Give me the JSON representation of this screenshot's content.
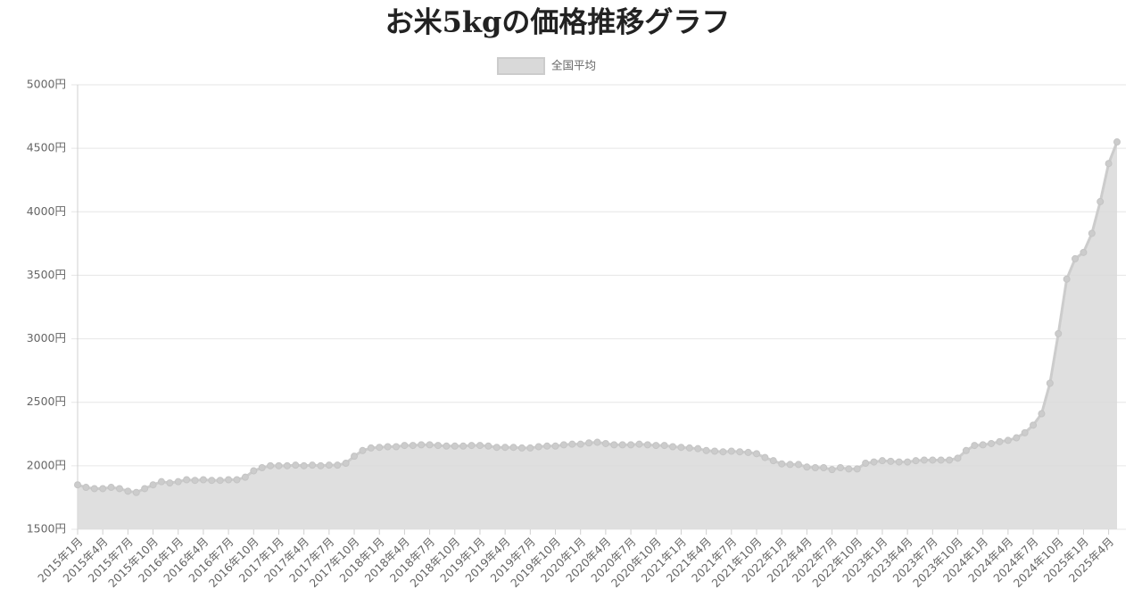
{
  "chart_data": {
    "type": "area",
    "title": "お米5kgの価格推移グラフ",
    "categories": [
      "2015年1月",
      null,
      null,
      "2015年4月",
      null,
      null,
      "2015年7月",
      null,
      null,
      "2015年10月",
      null,
      null,
      "2016年1月",
      null,
      null,
      "2016年4月",
      null,
      null,
      "2016年7月",
      null,
      null,
      "2016年10月",
      null,
      null,
      "2017年1月",
      null,
      null,
      "2017年4月",
      null,
      null,
      "2017年7月",
      null,
      null,
      "2017年10月",
      null,
      null,
      "2018年1月",
      null,
      null,
      "2018年4月",
      null,
      null,
      "2018年7月",
      null,
      null,
      "2018年10月",
      null,
      null,
      "2019年1月",
      null,
      null,
      "2019年4月",
      null,
      null,
      "2019年7月",
      null,
      null,
      "2019年10月",
      null,
      null,
      "2020年1月",
      null,
      null,
      "2020年4月",
      null,
      null,
      "2020年7月",
      null,
      null,
      "2020年10月",
      null,
      null,
      "2021年1月",
      null,
      null,
      "2021年4月",
      null,
      null,
      "2021年7月",
      null,
      null,
      "2021年10月",
      null,
      null,
      "2022年1月",
      null,
      null,
      "2022年4月",
      null,
      null,
      "2022年7月",
      null,
      null,
      "2022年10月",
      null,
      null,
      "2023年1月",
      null,
      null,
      "2023年4月",
      null,
      null,
      "2023年7月",
      null,
      null,
      "2023年10月",
      null,
      null,
      "2024年1月",
      null,
      null,
      "2024年4月",
      null,
      null,
      "2024年7月",
      null,
      null,
      "2024年10月",
      null,
      null,
      "2025年1月",
      null,
      null,
      "2025年4月",
      null
    ],
    "series": [
      {
        "name": "全国平均",
        "color": "#cccccc",
        "values": [
          1850,
          1830,
          1820,
          1820,
          1830,
          1820,
          1800,
          1790,
          1820,
          1850,
          1875,
          1865,
          1875,
          1890,
          1885,
          1890,
          1885,
          1885,
          1890,
          1890,
          1910,
          1960,
          1985,
          2000,
          2000,
          2000,
          2005,
          2000,
          2005,
          2000,
          2005,
          2005,
          2020,
          2075,
          2120,
          2140,
          2145,
          2150,
          2150,
          2160,
          2160,
          2165,
          2165,
          2160,
          2155,
          2155,
          2155,
          2160,
          2160,
          2155,
          2145,
          2145,
          2145,
          2140,
          2140,
          2150,
          2155,
          2155,
          2165,
          2170,
          2170,
          2180,
          2185,
          2175,
          2165,
          2165,
          2165,
          2170,
          2165,
          2160,
          2160,
          2150,
          2145,
          2140,
          2135,
          2120,
          2115,
          2110,
          2115,
          2110,
          2105,
          2095,
          2065,
          2040,
          2015,
          2010,
          2010,
          1990,
          1985,
          1985,
          1970,
          1985,
          1975,
          1975,
          2020,
          2030,
          2040,
          2035,
          2030,
          2030,
          2040,
          2045,
          2045,
          2045,
          2045,
          2060,
          2120,
          2160,
          2165,
          2175,
          2190,
          2200,
          2220,
          2260,
          2320,
          2410,
          2650,
          3040,
          3470,
          3630,
          3680,
          3830,
          4080,
          4380,
          4550
        ]
      }
    ],
    "ylim": [
      1500,
      5000
    ],
    "yticks": [
      {
        "value": 1500,
        "label": "1500円"
      },
      {
        "value": 2000,
        "label": "2000円"
      },
      {
        "value": 2500,
        "label": "2500円"
      },
      {
        "value": 3000,
        "label": "3000円"
      },
      {
        "value": 3500,
        "label": "3500円"
      },
      {
        "value": 4000,
        "label": "4000円"
      },
      {
        "value": 4500,
        "label": "4500円"
      },
      {
        "value": 5000,
        "label": "5000円"
      }
    ],
    "grid": true,
    "legend": "top"
  }
}
